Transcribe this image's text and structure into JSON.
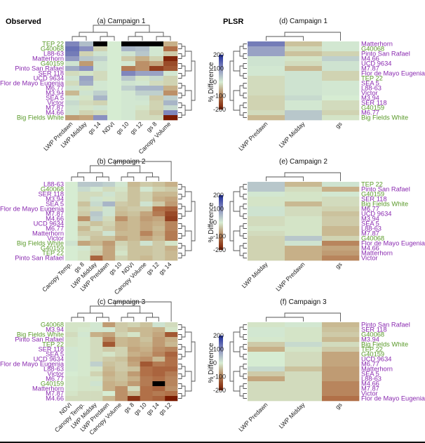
{
  "figure": {
    "section_labels": {
      "observed": "Observed",
      "plsr": "PLSR"
    },
    "colors": {
      "high": "#1a2a9a",
      "mid": "#d6ecd2",
      "low": "#7a1a00",
      "missing": "#000000",
      "group_a": "#5a9a2a",
      "group_b": "#8a2ab0"
    }
  },
  "chart_data": [
    {
      "type": "heatmap",
      "id": "a",
      "title": "(a) Campaign 1",
      "section": "Observed",
      "legend": {
        "title": "% Difference",
        "ticks": [
          200,
          100,
          0,
          -100,
          -200
        ],
        "range": [
          -200,
          200
        ]
      },
      "columns": [
        "LWP Predawn",
        "LWP Midday",
        "gs 14",
        "NDVI",
        "gs 10",
        "gs 12",
        "gs 8",
        "Canopy Volume"
      ],
      "rows": [
        "TEP 22",
        "G40068",
        "L88-63",
        "Matterhorn",
        "G40159",
        "Pinto San Rafael",
        "SER 118",
        "UCD 9634",
        "Flor de Mayo Eugenia",
        "M6.77",
        "M3.94",
        "SEA 5",
        "Victor",
        "M7.87",
        "M4.66",
        "Big Fields White"
      ],
      "row_groups": [
        "green",
        "green",
        "purple",
        "purple",
        "green",
        "purple",
        "purple",
        "purple",
        "purple",
        "purple",
        "purple",
        "purple",
        "purple",
        "purple",
        "purple",
        "green"
      ],
      "values": [
        [
          110,
          50,
          null,
          0,
          null,
          null,
          null,
          -70
        ],
        [
          130,
          100,
          -30,
          0,
          60,
          50,
          5,
          -130
        ],
        [
          120,
          -30,
          10,
          0,
          10,
          40,
          5,
          -40
        ],
        [
          90,
          40,
          30,
          0,
          -40,
          -70,
          -30,
          -190
        ],
        [
          10,
          -90,
          10,
          0,
          5,
          -100,
          -80,
          -160
        ],
        [
          70,
          100,
          10,
          0,
          -120,
          -100,
          -170,
          -150
        ],
        [
          -20,
          -10,
          -20,
          0,
          110,
          80,
          80,
          5
        ],
        [
          10,
          80,
          -20,
          0,
          40,
          -10,
          20,
          -30
        ],
        [
          -20,
          70,
          5,
          0,
          10,
          5,
          -20,
          -30
        ],
        [
          10,
          -10,
          5,
          0,
          30,
          60,
          60,
          -70
        ],
        [
          -60,
          10,
          30,
          0,
          5,
          30,
          30,
          -100
        ],
        [
          5,
          -10,
          60,
          0,
          5,
          10,
          -40,
          30
        ],
        [
          20,
          -20,
          -30,
          0,
          5,
          5,
          -30,
          60
        ],
        [
          10,
          -10,
          10,
          0,
          5,
          -10,
          -30,
          20
        ],
        [
          10,
          -30,
          -20,
          0,
          5,
          -20,
          -40,
          110
        ],
        [
          -90,
          -80,
          100,
          0,
          5,
          -20,
          -20,
          -200
        ]
      ]
    },
    {
      "type": "heatmap",
      "id": "b",
      "title": "(b) Campaign 2",
      "section": "Observed",
      "legend": {
        "title": "% Difference",
        "ticks": [
          200,
          100,
          0,
          -100,
          -200
        ],
        "range": [
          -200,
          200
        ]
      },
      "columns": [
        "Canopy Temp.",
        "gs 8",
        "LWP Midday",
        "LWP Predawn",
        "gs 10",
        "NDVI",
        "Canopy Volume",
        "gs 12",
        "gs 14"
      ],
      "rows": [
        "L88-63",
        "G40068",
        "SER 118",
        "M3.94",
        "SEA 5",
        "Flor de Mayo Eugenia",
        "M7.87",
        "M4.66",
        "UCD 9634",
        "M6.77",
        "Matterhorn",
        "Victor",
        "Big Fields White",
        "G40159",
        "TEP 22",
        "Pinto San Rafael"
      ],
      "row_groups": [
        "purple",
        "green",
        "purple",
        "purple",
        "purple",
        "purple",
        "purple",
        "purple",
        "purple",
        "purple",
        "purple",
        "purple",
        "green",
        "green",
        "green",
        "purple"
      ],
      "values": [
        [
          0,
          40,
          40,
          30,
          5,
          -60,
          -40,
          -50,
          -70
        ],
        [
          0,
          20,
          5,
          -20,
          -10,
          -50,
          5,
          -30,
          -40
        ],
        [
          0,
          -20,
          -20,
          10,
          -20,
          -50,
          -30,
          -60,
          -60
        ],
        [
          0,
          -20,
          10,
          -10,
          -20,
          -50,
          -30,
          -70,
          -80
        ],
        [
          0,
          -50,
          20,
          60,
          -40,
          -50,
          10,
          -40,
          -90
        ],
        [
          0,
          -30,
          -20,
          10,
          -50,
          -40,
          -40,
          -130,
          -140
        ],
        [
          0,
          -40,
          40,
          10,
          -60,
          -50,
          -80,
          -120,
          -160
        ],
        [
          0,
          -100,
          30,
          -20,
          -100,
          -60,
          -90,
          -80,
          -170
        ],
        [
          0,
          -30,
          -50,
          -30,
          -70,
          -60,
          -80,
          -70,
          -110
        ],
        [
          0,
          -60,
          -20,
          -40,
          -70,
          -60,
          -80,
          -60,
          -110
        ],
        [
          0,
          -40,
          -40,
          10,
          -60,
          -60,
          -110,
          -70,
          -120
        ],
        [
          0,
          -20,
          -50,
          -50,
          -80,
          -60,
          -80,
          -60,
          -120
        ],
        [
          10,
          -80,
          -60,
          -90,
          -30,
          -50,
          10,
          -40,
          -10
        ],
        [
          0,
          5,
          -30,
          -80,
          -20,
          -50,
          -50,
          -40,
          -70
        ],
        [
          0,
          -10,
          -40,
          -80,
          -10,
          -50,
          -50,
          -40,
          -60
        ],
        [
          0,
          -10,
          -140,
          -80,
          -30,
          -50,
          -60,
          -40,
          -60
        ]
      ]
    },
    {
      "type": "heatmap",
      "id": "c",
      "title": "(c) Campaign 3",
      "section": "Observed",
      "legend": {
        "title": "% Difference",
        "ticks": [
          200,
          100,
          0,
          -100,
          -200
        ],
        "range": [
          -200,
          200
        ]
      },
      "columns": [
        "NDVI",
        "Canopy Temp.",
        "LWP Midday",
        "LWP Predawn",
        "Canopy Volume",
        "gs 8",
        "gs 10",
        "gs 14",
        "gs 12"
      ],
      "rows": [
        "G40068",
        "M3.94",
        "Big Fields White",
        "Pinto San Rafael",
        "TEP 22",
        "SER 118",
        "SEA 5",
        "UCD 9634",
        "Flor de Mayo Eugenia",
        "L88-63",
        "Victor",
        "M6.77",
        "G40159",
        "Matterhorn",
        "M7.87",
        "M4.66"
      ],
      "row_groups": [
        "green",
        "purple",
        "green",
        "purple",
        "green",
        "purple",
        "purple",
        "purple",
        "purple",
        "purple",
        "purple",
        "purple",
        "green",
        "purple",
        "purple",
        "purple"
      ],
      "values": [
        [
          -10,
          -10,
          5,
          -90,
          -40,
          -30,
          -50,
          10,
          -20
        ],
        [
          -10,
          -5,
          5,
          5,
          -40,
          -60,
          -60,
          -70,
          -10
        ],
        [
          -20,
          5,
          -70,
          -80,
          -30,
          -10,
          -60,
          -80,
          -150
        ],
        [
          -10,
          -5,
          -20,
          -110,
          -60,
          -70,
          -50,
          -90,
          -70
        ],
        [
          -10,
          -5,
          -20,
          -150,
          -60,
          -70,
          -60,
          -90,
          -60
        ],
        [
          5,
          -5,
          -20,
          -40,
          -30,
          -80,
          -70,
          -100,
          -110
        ],
        [
          5,
          -5,
          -20,
          -10,
          -30,
          -70,
          -80,
          -110,
          -140
        ],
        [
          5,
          -5,
          -20,
          -40,
          -50,
          -90,
          -100,
          -60,
          -130
        ],
        [
          5,
          -5,
          30,
          -50,
          -40,
          -80,
          -150,
          -120,
          -130
        ],
        [
          5,
          -5,
          -10,
          -60,
          -40,
          -50,
          -130,
          -140,
          -140
        ],
        [
          0,
          -5,
          -30,
          -70,
          -50,
          -90,
          -130,
          -140,
          -120
        ],
        [
          -5,
          -10,
          -10,
          -60,
          -50,
          -70,
          -120,
          -130,
          -110
        ],
        [
          -5,
          -10,
          10,
          -70,
          -60,
          -90,
          -120,
          null,
          -110
        ],
        [
          -5,
          -10,
          -10,
          -70,
          -100,
          -20,
          -130,
          -140,
          -100
        ],
        [
          -10,
          -20,
          -20,
          0,
          -100,
          -60,
          -130,
          -120,
          -130
        ],
        [
          -20,
          -20,
          -20,
          -60,
          -100,
          -180,
          -130,
          -140,
          -200
        ]
      ]
    },
    {
      "type": "heatmap",
      "id": "d",
      "title": "(d) Campaign 1",
      "section": "PLSR",
      "legend": {
        "title": "% Difference",
        "ticks": [
          200,
          100,
          0,
          -100,
          -200
        ],
        "range": [
          -200,
          200
        ]
      },
      "columns": [
        "LWP Predawn",
        "LWP Midday",
        "gs"
      ],
      "rows": [
        "Matterhorn",
        "G40068",
        "Pinto San Rafael",
        "M4.66",
        "UCD 9634",
        "M7.87",
        "Flor de Mayo Eugenia",
        "TEP 22",
        "SEA 5",
        "L88-63",
        "Victor",
        "M3.94",
        "SER 118",
        "G40159",
        "M6.77",
        "Big Fields White"
      ],
      "row_groups": [
        "purple",
        "green",
        "purple",
        "purple",
        "purple",
        "purple",
        "purple",
        "green",
        "purple",
        "purple",
        "purple",
        "purple",
        "purple",
        "green",
        "purple",
        "green"
      ],
      "values": [
        [
          120,
          -50,
          5
        ],
        [
          80,
          -20,
          5
        ],
        [
          80,
          -50,
          -30
        ],
        [
          10,
          -10,
          30
        ],
        [
          10,
          -20,
          10
        ],
        [
          5,
          -60,
          10
        ],
        [
          5,
          10,
          -30
        ],
        [
          -20,
          10,
          -30
        ],
        [
          -20,
          10,
          5
        ],
        [
          -20,
          10,
          5
        ],
        [
          -20,
          10,
          5
        ],
        [
          -30,
          20,
          0
        ],
        [
          -30,
          5,
          -20
        ],
        [
          -30,
          5,
          -20
        ],
        [
          -20,
          40,
          -30
        ],
        [
          -60,
          40,
          -10
        ]
      ]
    },
    {
      "type": "heatmap",
      "id": "e",
      "title": "(e) Campaign 2",
      "section": "PLSR",
      "legend": {
        "title": "% Difference",
        "ticks": [
          200,
          100,
          0,
          -100,
          -200
        ],
        "range": [
          -200,
          200
        ]
      },
      "columns": [
        "LWP Midday",
        "LWP Predawn",
        "gs"
      ],
      "rows": [
        "TEP 22",
        "Pinto San Rafael",
        "G40159",
        "SER 118",
        "Big Fields White",
        "M6.77",
        "UCD 9634",
        "M3.94",
        "SEA 5",
        "L88-63",
        "M7.87",
        "G40068",
        "Flor de Mayo Eugenia",
        "M4.66",
        "Matterhorn",
        "Victor"
      ],
      "row_groups": [
        "green",
        "purple",
        "green",
        "purple",
        "green",
        "purple",
        "purple",
        "purple",
        "purple",
        "purple",
        "purple",
        "green",
        "purple",
        "purple",
        "purple",
        "purple"
      ],
      "values": [
        [
          40,
          -60,
          10
        ],
        [
          40,
          -20,
          -70
        ],
        [
          5,
          -10,
          5
        ],
        [
          -10,
          -10,
          -20
        ],
        [
          -10,
          -60,
          -20
        ],
        [
          10,
          -20,
          -30
        ],
        [
          10,
          -20,
          -50
        ],
        [
          -20,
          -10,
          -40
        ],
        [
          -20,
          -10,
          -40
        ],
        [
          -10,
          -10,
          -60
        ],
        [
          -20,
          -10,
          -60
        ],
        [
          -30,
          40,
          -30
        ],
        [
          -30,
          10,
          -110
        ],
        [
          -30,
          -70,
          -80
        ],
        [
          -30,
          -70,
          -90
        ],
        [
          -30,
          -70,
          -110
        ]
      ]
    },
    {
      "type": "heatmap",
      "id": "f",
      "title": "(f) Campaign 3",
      "section": "PLSR",
      "legend": {
        "title": "% Difference",
        "ticks": [
          200,
          100,
          0,
          -100,
          -200
        ],
        "range": [
          -200,
          200
        ]
      },
      "columns": [
        "LWP Predawn",
        "LWP Midday",
        "gs"
      ],
      "rows": [
        "Pinto San Rafael",
        "SER 118",
        "G40068",
        "M3.94",
        "Big Fields White",
        "TEP 22",
        "G40159",
        "UCD 9634",
        "M6.77",
        "Matterhorn",
        "SEA 5",
        "L88-63",
        "M4.66",
        "M7.87",
        "Victor",
        "Flor de Mayo Eugenia"
      ],
      "row_groups": [
        "purple",
        "purple",
        "green",
        "purple",
        "green",
        "green",
        "green",
        "purple",
        "purple",
        "purple",
        "purple",
        "purple",
        "purple",
        "purple",
        "purple",
        "purple"
      ],
      "values": [
        [
          -10,
          5,
          -60
        ],
        [
          5,
          -10,
          -50
        ],
        [
          5,
          -10,
          -40
        ],
        [
          -5,
          -10,
          -60
        ],
        [
          -40,
          20,
          -20
        ],
        [
          -70,
          -10,
          -40
        ],
        [
          0,
          -20,
          -80
        ],
        [
          0,
          -20,
          -80
        ],
        [
          0,
          -20,
          -80
        ],
        [
          20,
          -50,
          -90
        ],
        [
          -40,
          -20,
          -90
        ],
        [
          -80,
          -20,
          -90
        ],
        [
          -20,
          -20,
          -110
        ],
        [
          -20,
          -20,
          -110
        ],
        [
          -20,
          -20,
          -110
        ],
        [
          -20,
          -20,
          -130
        ]
      ]
    }
  ]
}
